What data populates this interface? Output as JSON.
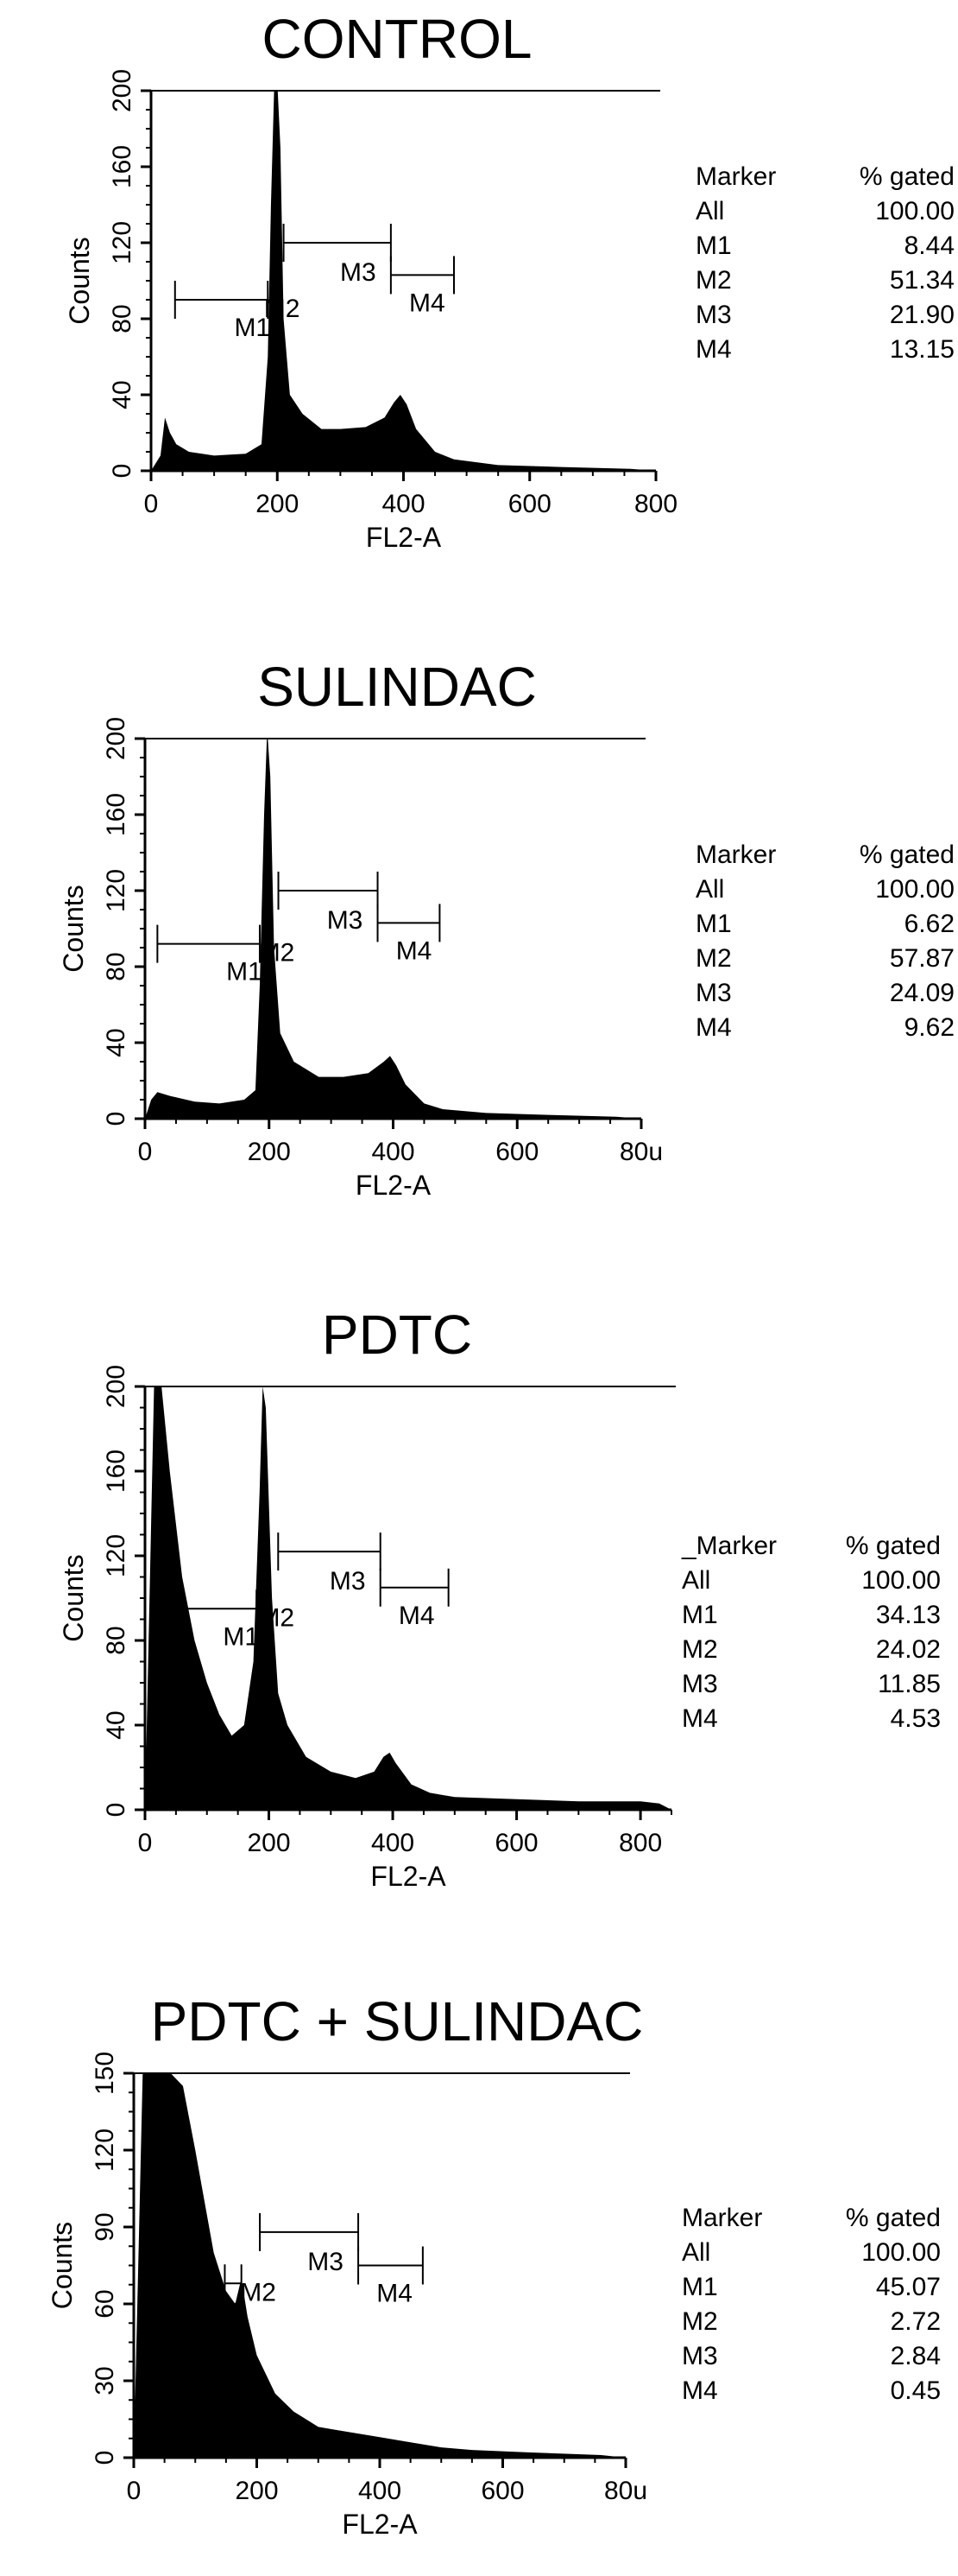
{
  "chart_data": [
    {
      "type": "histogram",
      "title": "CONTROL",
      "xlabel": "FL2-A",
      "ylabel": "Counts",
      "xlim": [
        0,
        800
      ],
      "ylim": [
        0,
        200
      ],
      "x_ticks": [
        "0",
        "200",
        "400",
        "600",
        "800"
      ],
      "y_ticks": [
        "0",
        "40",
        "80",
        "120",
        "160",
        "200"
      ],
      "profile": [
        [
          0,
          0
        ],
        [
          15,
          8
        ],
        [
          22,
          28
        ],
        [
          30,
          20
        ],
        [
          40,
          14
        ],
        [
          60,
          10
        ],
        [
          100,
          8
        ],
        [
          150,
          9
        ],
        [
          175,
          14
        ],
        [
          185,
          60
        ],
        [
          190,
          140
        ],
        [
          195,
          200
        ],
        [
          200,
          205
        ],
        [
          205,
          170
        ],
        [
          210,
          80
        ],
        [
          220,
          40
        ],
        [
          240,
          30
        ],
        [
          270,
          22
        ],
        [
          300,
          22
        ],
        [
          340,
          23
        ],
        [
          370,
          28
        ],
        [
          385,
          36
        ],
        [
          395,
          40
        ],
        [
          405,
          35
        ],
        [
          420,
          22
        ],
        [
          450,
          10
        ],
        [
          480,
          6
        ],
        [
          550,
          3
        ],
        [
          650,
          2
        ],
        [
          760,
          1
        ],
        [
          800,
          0
        ]
      ],
      "markers": [
        {
          "name": "M1",
          "x1": 38,
          "x2": 185,
          "y": 90
        },
        {
          "name": "M2",
          "x1": 210,
          "x2": 380,
          "y": 120
        },
        {
          "name": "M3",
          "x1": 210,
          "x2": 380,
          "y": 120
        },
        {
          "name": "M4",
          "x1": 380,
          "x2": 480,
          "y": 103
        }
      ],
      "stats_header": [
        "Marker",
        "% gated"
      ],
      "stats": [
        [
          "All",
          "100.00"
        ],
        [
          "M1",
          "8.44"
        ],
        [
          "M2",
          "51.34"
        ],
        [
          "M3",
          "21.90"
        ],
        [
          "M4",
          "13.15"
        ]
      ]
    },
    {
      "type": "histogram",
      "title": "SULINDAC",
      "xlabel": "FL2-A",
      "ylabel": "Counts",
      "xlim": [
        0,
        800
      ],
      "ylim": [
        0,
        200
      ],
      "x_ticks": [
        "0",
        "200",
        "400",
        "600",
        "80u"
      ],
      "y_ticks": [
        "0",
        "40",
        "80",
        "120",
        "160",
        "200"
      ],
      "profile": [
        [
          0,
          0
        ],
        [
          10,
          10
        ],
        [
          20,
          14
        ],
        [
          40,
          12
        ],
        [
          80,
          9
        ],
        [
          120,
          8
        ],
        [
          160,
          10
        ],
        [
          178,
          15
        ],
        [
          185,
          70
        ],
        [
          192,
          160
        ],
        [
          197,
          205
        ],
        [
          202,
          180
        ],
        [
          208,
          90
        ],
        [
          218,
          45
        ],
        [
          240,
          30
        ],
        [
          280,
          22
        ],
        [
          320,
          22
        ],
        [
          360,
          24
        ],
        [
          385,
          30
        ],
        [
          395,
          33
        ],
        [
          405,
          28
        ],
        [
          420,
          18
        ],
        [
          450,
          8
        ],
        [
          480,
          5
        ],
        [
          550,
          3
        ],
        [
          650,
          2
        ],
        [
          760,
          1
        ],
        [
          800,
          0
        ]
      ],
      "markers": [
        {
          "name": "M1",
          "x1": 20,
          "x2": 185,
          "y": 92
        },
        {
          "name": "M2",
          "x1": 215,
          "x2": 375,
          "y": 120
        },
        {
          "name": "M3",
          "x1": 215,
          "x2": 375,
          "y": 120
        },
        {
          "name": "M4",
          "x1": 375,
          "x2": 475,
          "y": 103
        }
      ],
      "stats_header": [
        "Marker",
        "% gated"
      ],
      "stats": [
        [
          "All",
          "100.00"
        ],
        [
          "M1",
          "6.62"
        ],
        [
          "M2",
          "57.87"
        ],
        [
          "M3",
          "24.09"
        ],
        [
          "M4",
          "9.62"
        ]
      ]
    },
    {
      "type": "histogram",
      "title": "PDTC",
      "xlabel": "FL2-A",
      "ylabel": "Counts",
      "xlim": [
        0,
        850
      ],
      "ylim": [
        0,
        200
      ],
      "x_ticks": [
        "0",
        "200",
        "400",
        "600",
        "800"
      ],
      "y_ticks": [
        "0",
        "40",
        "80",
        "120",
        "160",
        "200"
      ],
      "profile": [
        [
          0,
          0
        ],
        [
          15,
          205
        ],
        [
          25,
          205
        ],
        [
          40,
          160
        ],
        [
          60,
          110
        ],
        [
          80,
          80
        ],
        [
          100,
          60
        ],
        [
          120,
          45
        ],
        [
          140,
          35
        ],
        [
          160,
          40
        ],
        [
          175,
          70
        ],
        [
          185,
          150
        ],
        [
          190,
          200
        ],
        [
          195,
          190
        ],
        [
          205,
          100
        ],
        [
          215,
          55
        ],
        [
          230,
          40
        ],
        [
          260,
          25
        ],
        [
          300,
          18
        ],
        [
          340,
          15
        ],
        [
          370,
          18
        ],
        [
          385,
          25
        ],
        [
          395,
          27
        ],
        [
          405,
          22
        ],
        [
          430,
          12
        ],
        [
          460,
          8
        ],
        [
          500,
          6
        ],
        [
          600,
          5
        ],
        [
          700,
          4
        ],
        [
          800,
          4
        ],
        [
          830,
          3
        ],
        [
          850,
          0
        ]
      ],
      "markers": [
        {
          "name": "M1",
          "x1": 60,
          "x2": 180,
          "y": 95
        },
        {
          "name": "M2",
          "x1": 215,
          "x2": 380,
          "y": 122
        },
        {
          "name": "M3",
          "x1": 215,
          "x2": 380,
          "y": 122
        },
        {
          "name": "M4",
          "x1": 380,
          "x2": 490,
          "y": 105
        }
      ],
      "stats_header": [
        "_Marker",
        "% gated"
      ],
      "stats": [
        [
          "All",
          "100.00"
        ],
        [
          "M1",
          "34.13"
        ],
        [
          "M2",
          "24.02"
        ],
        [
          "M3",
          "11.85"
        ],
        [
          "M4",
          "4.53"
        ]
      ]
    },
    {
      "type": "histogram",
      "title": "PDTC + SULINDAC",
      "xlabel": "FL2-A",
      "ylabel": "Counts",
      "xlim": [
        0,
        800
      ],
      "ylim": [
        0,
        150
      ],
      "x_ticks": [
        "0",
        "200",
        "400",
        "600",
        "80u"
      ],
      "y_ticks": [
        "0",
        "30",
        "60",
        "90",
        "120",
        "150"
      ],
      "profile": [
        [
          0,
          0
        ],
        [
          15,
          155
        ],
        [
          40,
          155
        ],
        [
          60,
          150
        ],
        [
          80,
          145
        ],
        [
          100,
          120
        ],
        [
          115,
          100
        ],
        [
          130,
          80
        ],
        [
          150,
          65
        ],
        [
          165,
          60
        ],
        [
          175,
          70
        ],
        [
          185,
          55
        ],
        [
          200,
          40
        ],
        [
          230,
          25
        ],
        [
          260,
          18
        ],
        [
          300,
          12
        ],
        [
          350,
          10
        ],
        [
          400,
          8
        ],
        [
          450,
          6
        ],
        [
          500,
          4
        ],
        [
          550,
          3
        ],
        [
          650,
          2
        ],
        [
          760,
          1
        ],
        [
          800,
          0
        ]
      ],
      "markers": [
        {
          "name": "M1",
          "x1": 148,
          "x2": 175,
          "y": 68
        },
        {
          "name": "M2",
          "x1": 205,
          "x2": 365,
          "y": 88
        },
        {
          "name": "M3",
          "x1": 205,
          "x2": 365,
          "y": 88
        },
        {
          "name": "M4",
          "x1": 365,
          "x2": 470,
          "y": 75
        }
      ],
      "stats_header": [
        "Marker",
        "% gated"
      ],
      "stats": [
        [
          "All",
          "100.00"
        ],
        [
          "M1",
          "45.07"
        ],
        [
          "M2",
          "2.72"
        ],
        [
          "M3",
          "2.84"
        ],
        [
          "M4",
          "0.45"
        ]
      ]
    }
  ]
}
